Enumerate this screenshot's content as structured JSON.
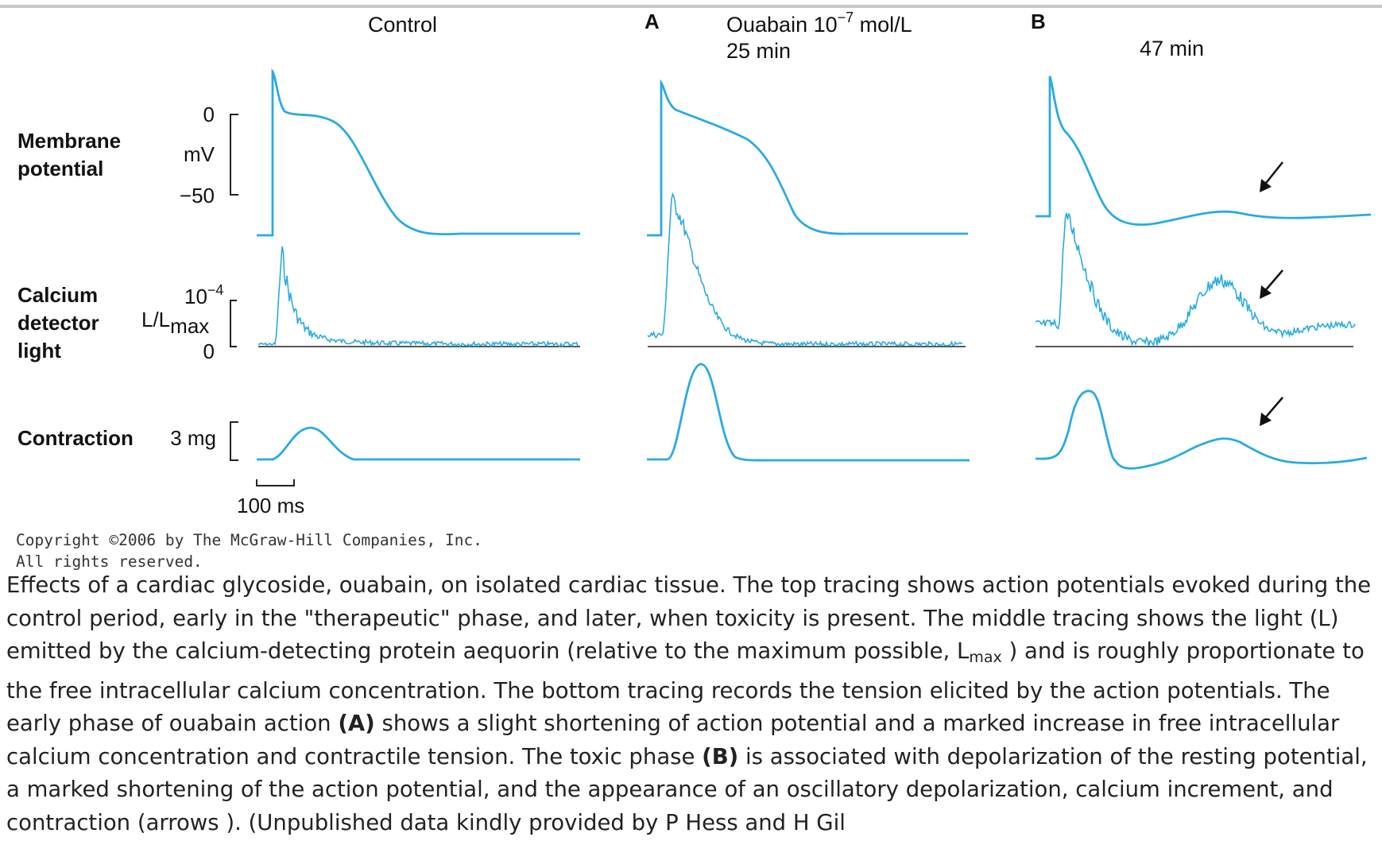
{
  "figure": {
    "column_titles": {
      "control": "Control",
      "panel_a_letter": "A",
      "ouabain_prefix": "Ouabain 10",
      "ouabain_exponent": "−7",
      "ouabain_unit": " mol/L",
      "time_a": "25 min",
      "panel_b_letter": "B",
      "time_b": "47 min"
    },
    "row_labels": {
      "membrane_line1": "Membrane",
      "membrane_line2": "potential",
      "calcium_line1": "Calcium",
      "calcium_line2": "detector",
      "calcium_line3": "light",
      "contraction": "Contraction"
    },
    "scales": {
      "mv_top": "0",
      "mv_unit": "mV",
      "mv_bottom": "−50",
      "light_top_base": "10",
      "light_top_exp": "−4",
      "light_unit_L": "L/L",
      "light_unit_sub": "max",
      "light_bottom": "0",
      "force": "3 mg",
      "time": "100 ms"
    },
    "copyright_line1": "Copyright ©2006 by The McGraw-Hill Companies, Inc.",
    "copyright_line2": "All rights reserved.",
    "trace_color": "#29abe2"
  },
  "caption": {
    "p1": "Effects of a cardiac glycoside, ouabain, on isolated cardiac tissue. The top tracing shows action potentials evoked during the control period, early in the \"therapeutic\" phase, and later, when toxicity is present. The middle tracing shows the light (L) emitted by the calcium-detecting protein aequorin (relative to the maximum possible, L",
    "p1_sub": "max",
    "p2": " ) and is roughly proportionate to the free intracellular calcium concentration. The bottom tracing records the tension elicited by the action potentials. The early phase of ouabain action ",
    "a_label": "(A)",
    "p3": " shows a slight shortening of action potential and a marked increase in free intracellular calcium concentration and contractile tension. The toxic phase ",
    "b_label": "(B)",
    "p4": " is associated with depolarization of the resting potential, a marked shortening of the action potential, and the appearance of an oscillatory depolarization, calcium increment, and contraction (arrows ). (Unpublished data kindly provided by P Hess and H Gil"
  }
}
